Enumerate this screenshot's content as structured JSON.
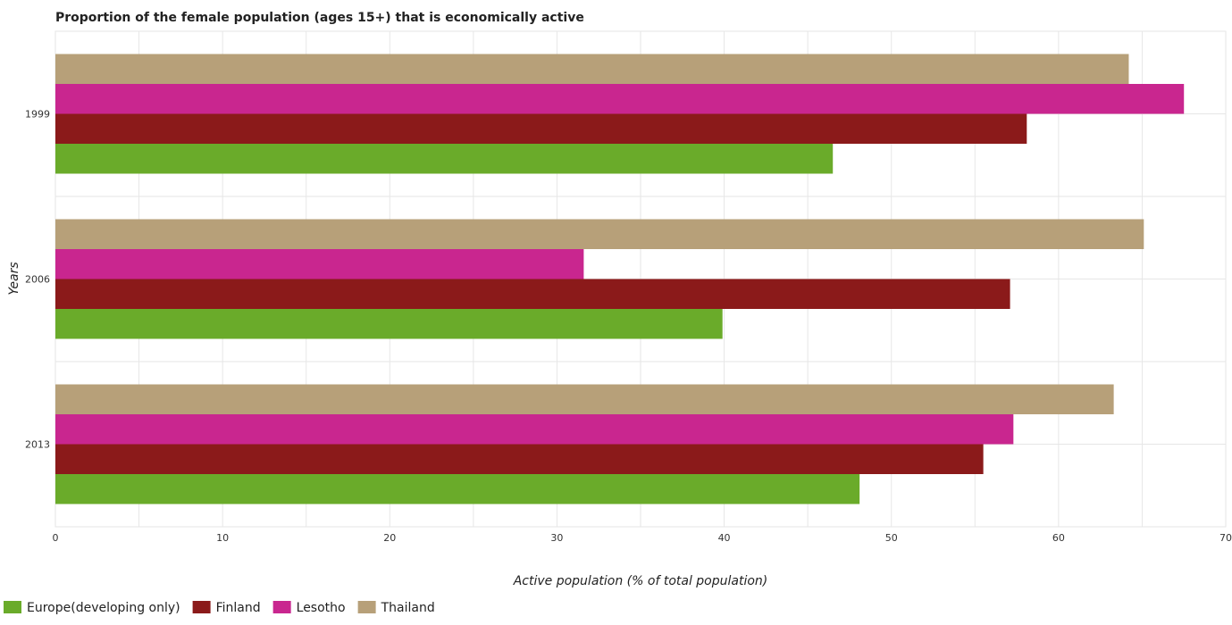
{
  "chart_data": {
    "type": "bar",
    "orientation": "horizontal",
    "title": "Proportion of the female population (ages 15+) that is economically active",
    "xlabel": "Active population (% of total population)",
    "ylabel": "Years",
    "xlim": [
      0,
      70
    ],
    "x_ticks": [
      0,
      10,
      20,
      30,
      40,
      50,
      60,
      70
    ],
    "categories": [
      "1999",
      "2006",
      "2013"
    ],
    "series": [
      {
        "name": "Europe(developing only)",
        "color": "#6aab2a",
        "values": [
          46.5,
          39.9,
          48.1
        ]
      },
      {
        "name": "Finland",
        "color": "#8b1a1a",
        "values": [
          58.1,
          57.1,
          55.5
        ]
      },
      {
        "name": "Lesotho",
        "color": "#c9268f",
        "values": [
          67.5,
          31.6,
          57.3
        ]
      },
      {
        "name": "Thailand",
        "color": "#b7a079",
        "values": [
          64.2,
          65.1,
          63.3
        ]
      }
    ],
    "grid": true,
    "legend_position": "bottom-left"
  }
}
